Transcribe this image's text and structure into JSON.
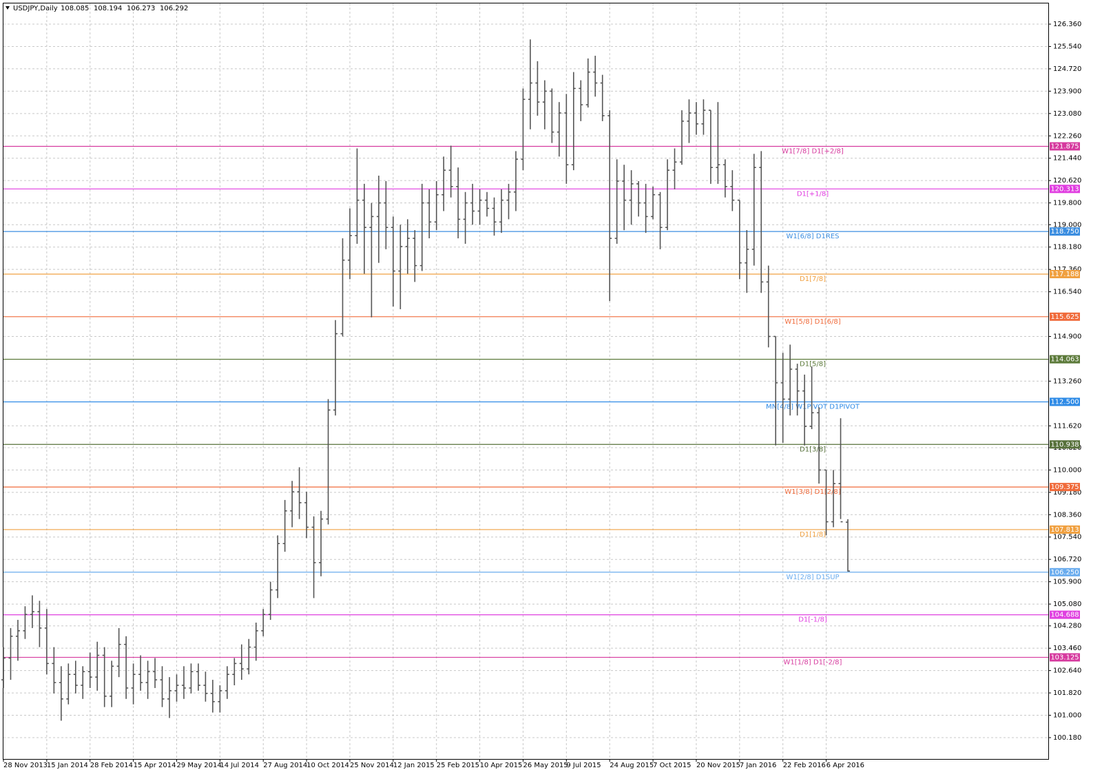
{
  "chart_data": {
    "type": "ohlc",
    "symbol": "USDJPY,Daily",
    "last_ohlc": [
      108.085,
      108.194,
      106.273,
      106.292
    ],
    "bar_color": "#555555",
    "grid": true,
    "ylim": [
      99.396,
      127.119
    ],
    "yticks": [
      {
        "value": 100.18,
        "label": "100.180"
      },
      {
        "value": 101.0,
        "label": "101.000"
      },
      {
        "value": 101.82,
        "label": "101.820"
      },
      {
        "value": 102.64,
        "label": "102.640"
      },
      {
        "value": 103.46,
        "label": "103.460"
      },
      {
        "value": 104.28,
        "label": "104.280"
      },
      {
        "value": 105.08,
        "label": "105.080"
      },
      {
        "value": 105.9,
        "label": "105.900"
      },
      {
        "value": 106.72,
        "label": "106.720"
      },
      {
        "value": 107.54,
        "label": "107.540"
      },
      {
        "value": 108.36,
        "label": "108.360"
      },
      {
        "value": 109.18,
        "label": "109.180"
      },
      {
        "value": 110.0,
        "label": "110.000"
      },
      {
        "value": 110.82,
        "label": "110.820"
      },
      {
        "value": 111.62,
        "label": "111.620"
      },
      {
        "value": 113.26,
        "label": "113.260"
      },
      {
        "value": 114.9,
        "label": "114.900"
      },
      {
        "value": 116.54,
        "label": "116.540"
      },
      {
        "value": 117.36,
        "label": "117.360"
      },
      {
        "value": 118.18,
        "label": "118.180"
      },
      {
        "value": 119.0,
        "label": "119.000"
      },
      {
        "value": 119.8,
        "label": "119.800"
      },
      {
        "value": 120.62,
        "label": "120.620"
      },
      {
        "value": 121.44,
        "label": "121.440"
      },
      {
        "value": 122.26,
        "label": "122.260"
      },
      {
        "value": 123.08,
        "label": "123.080"
      },
      {
        "value": 123.9,
        "label": "123.900"
      },
      {
        "value": 124.72,
        "label": "124.720"
      },
      {
        "value": 125.54,
        "label": "125.540"
      },
      {
        "value": 126.36,
        "label": "126.360"
      }
    ],
    "categories": [
      "28 Nov 2013",
      null,
      null,
      null,
      null,
      null,
      "15 Jan 2014",
      null,
      null,
      null,
      null,
      null,
      "28 Feb 2014",
      null,
      null,
      null,
      null,
      null,
      "15 Apr 2014",
      null,
      null,
      null,
      null,
      null,
      "29 May 2014",
      null,
      null,
      null,
      null,
      null,
      "14 Jul 2014",
      null,
      null,
      null,
      null,
      null,
      "27 Aug 2014",
      null,
      null,
      null,
      null,
      null,
      "10 Oct 2014",
      null,
      null,
      null,
      null,
      null,
      "25 Nov 2014",
      null,
      null,
      null,
      null,
      null,
      "12 Jan 2015",
      null,
      null,
      null,
      null,
      null,
      "25 Feb 2015",
      null,
      null,
      null,
      null,
      null,
      "10 Apr 2015",
      null,
      null,
      null,
      null,
      null,
      "26 May 2015",
      null,
      null,
      null,
      null,
      null,
      "9 Jul 2015",
      null,
      null,
      null,
      null,
      null,
      "24 Aug 2015",
      null,
      null,
      null,
      null,
      null,
      "7 Oct 2015",
      null,
      null,
      null,
      null,
      null,
      "20 Nov 2015",
      null,
      null,
      null,
      null,
      null,
      "7 Jan 2016",
      null,
      null,
      null,
      null,
      null,
      "22 Feb 2016",
      null,
      null,
      null,
      null,
      null,
      "6 Apr 2016",
      null,
      null,
      null
    ],
    "ohlc": [
      [
        102.3,
        103.5,
        102.0,
        103.1
      ],
      [
        103.1,
        104.2,
        102.3,
        103.9
      ],
      [
        103.9,
        104.5,
        103.0,
        104.1
      ],
      [
        104.1,
        105.0,
        103.8,
        104.7
      ],
      [
        104.7,
        105.4,
        104.2,
        104.8
      ],
      [
        104.8,
        105.2,
        103.5,
        104.2
      ],
      [
        104.2,
        104.9,
        102.5,
        102.9
      ],
      [
        102.9,
        103.5,
        101.8,
        102.2
      ],
      [
        102.2,
        102.8,
        100.8,
        101.6
      ],
      [
        101.6,
        102.9,
        101.4,
        102.5
      ],
      [
        102.5,
        103.0,
        101.8,
        102.1
      ],
      [
        102.1,
        102.8,
        101.6,
        102.6
      ],
      [
        102.6,
        103.3,
        102.0,
        102.4
      ],
      [
        102.4,
        103.7,
        101.9,
        103.2
      ],
      [
        103.2,
        103.5,
        101.3,
        101.7
      ],
      [
        101.7,
        103.0,
        101.3,
        102.8
      ],
      [
        102.8,
        104.2,
        102.4,
        103.6
      ],
      [
        103.6,
        103.9,
        101.6,
        102.0
      ],
      [
        102.0,
        102.9,
        101.4,
        102.5
      ],
      [
        102.5,
        103.2,
        101.9,
        102.2
      ],
      [
        102.2,
        103.0,
        101.6,
        102.6
      ],
      [
        102.6,
        103.1,
        102.0,
        102.3
      ],
      [
        102.3,
        102.8,
        101.3,
        101.6
      ],
      [
        101.6,
        102.4,
        100.9,
        101.9
      ],
      [
        101.9,
        102.5,
        101.5,
        102.1
      ],
      [
        102.1,
        102.8,
        101.6,
        102.0
      ],
      [
        102.0,
        102.9,
        101.8,
        102.6
      ],
      [
        102.6,
        102.9,
        101.9,
        102.1
      ],
      [
        102.1,
        102.6,
        101.5,
        101.8
      ],
      [
        101.8,
        102.3,
        101.1,
        101.5
      ],
      [
        101.5,
        102.1,
        101.1,
        101.9
      ],
      [
        101.9,
        102.8,
        101.6,
        102.5
      ],
      [
        102.5,
        103.1,
        102.1,
        102.9
      ],
      [
        102.9,
        103.6,
        102.3,
        102.7
      ],
      [
        102.7,
        103.8,
        102.5,
        103.5
      ],
      [
        103.5,
        104.4,
        103.0,
        104.1
      ],
      [
        104.1,
        104.9,
        103.9,
        104.7
      ],
      [
        104.7,
        105.9,
        104.5,
        105.6
      ],
      [
        105.6,
        107.6,
        105.3,
        107.3
      ],
      [
        107.3,
        108.9,
        107.0,
        108.5
      ],
      [
        108.5,
        109.6,
        107.9,
        109.2
      ],
      [
        109.2,
        110.1,
        108.2,
        108.8
      ],
      [
        108.8,
        109.2,
        107.5,
        107.9
      ],
      [
        107.9,
        108.3,
        105.3,
        106.6
      ],
      [
        106.6,
        108.5,
        106.1,
        108.2
      ],
      [
        108.2,
        112.6,
        108.0,
        112.2
      ],
      [
        112.2,
        115.5,
        112.0,
        115.0
      ],
      [
        115.0,
        118.5,
        114.9,
        117.7
      ],
      [
        117.7,
        119.6,
        117.0,
        118.6
      ],
      [
        118.6,
        121.8,
        118.3,
        119.9
      ],
      [
        119.9,
        120.5,
        117.2,
        118.9
      ],
      [
        118.9,
        119.8,
        115.6,
        119.3
      ],
      [
        119.3,
        120.8,
        117.6,
        119.8
      ],
      [
        119.8,
        120.6,
        118.1,
        118.9
      ],
      [
        118.9,
        119.3,
        116.0,
        117.3
      ],
      [
        117.3,
        119.0,
        115.9,
        118.2
      ],
      [
        118.2,
        119.2,
        117.2,
        118.5
      ],
      [
        118.5,
        118.8,
        116.9,
        117.5
      ],
      [
        117.5,
        120.5,
        117.3,
        119.8
      ],
      [
        119.8,
        120.3,
        118.5,
        119.1
      ],
      [
        119.1,
        120.6,
        118.8,
        120.1
      ],
      [
        120.1,
        121.5,
        119.5,
        121.0
      ],
      [
        121.0,
        121.9,
        120.0,
        120.4
      ],
      [
        120.4,
        121.1,
        118.5,
        119.2
      ],
      [
        119.2,
        120.2,
        118.3,
        119.8
      ],
      [
        119.8,
        120.5,
        119.0,
        119.5
      ],
      [
        119.5,
        120.3,
        119.0,
        119.9
      ],
      [
        119.9,
        120.2,
        119.3,
        119.6
      ],
      [
        119.6,
        120.0,
        118.6,
        119.1
      ],
      [
        119.1,
        120.3,
        118.7,
        119.9
      ],
      [
        119.9,
        120.5,
        119.2,
        120.2
      ],
      [
        120.2,
        121.7,
        119.5,
        121.4
      ],
      [
        121.4,
        124.0,
        121.0,
        123.6
      ],
      [
        123.6,
        125.8,
        122.5,
        124.2
      ],
      [
        124.2,
        125.0,
        123.0,
        123.5
      ],
      [
        123.5,
        124.3,
        122.5,
        123.9
      ],
      [
        123.9,
        124.0,
        122.0,
        122.4
      ],
      [
        122.4,
        123.5,
        121.5,
        123.1
      ],
      [
        123.1,
        123.8,
        120.5,
        121.2
      ],
      [
        121.2,
        124.6,
        121.0,
        124.0
      ],
      [
        124.0,
        124.3,
        122.8,
        123.4
      ],
      [
        123.4,
        125.1,
        123.3,
        124.6
      ],
      [
        124.6,
        125.2,
        123.7,
        124.2
      ],
      [
        124.2,
        124.5,
        122.8,
        123.0
      ],
      [
        123.0,
        123.2,
        116.2,
        118.5
      ],
      [
        118.5,
        121.4,
        118.3,
        120.6
      ],
      [
        120.6,
        121.2,
        118.8,
        119.9
      ],
      [
        119.9,
        121.0,
        119.0,
        120.5
      ],
      [
        120.5,
        120.6,
        119.3,
        119.8
      ],
      [
        119.8,
        120.5,
        118.7,
        119.3
      ],
      [
        119.3,
        120.4,
        119.2,
        120.1
      ],
      [
        120.1,
        120.2,
        118.1,
        118.9
      ],
      [
        118.9,
        121.4,
        118.8,
        121.0
      ],
      [
        121.0,
        121.8,
        120.3,
        121.3
      ],
      [
        121.3,
        123.2,
        121.2,
        122.8
      ],
      [
        122.8,
        123.6,
        122.0,
        123.1
      ],
      [
        123.1,
        123.5,
        122.3,
        122.7
      ],
      [
        122.7,
        123.6,
        122.3,
        123.2
      ],
      [
        123.2,
        123.2,
        120.5,
        121.1
      ],
      [
        121.1,
        123.5,
        120.5,
        121.2
      ],
      [
        121.2,
        121.4,
        120.0,
        120.4
      ],
      [
        120.4,
        121.0,
        119.5,
        119.9
      ],
      [
        119.9,
        119.9,
        117.0,
        117.6
      ],
      [
        117.6,
        118.8,
        116.5,
        118.1
      ],
      [
        118.1,
        121.6,
        117.5,
        121.1
      ],
      [
        121.1,
        121.7,
        116.5,
        116.9
      ],
      [
        116.9,
        117.5,
        114.5,
        114.9
      ],
      [
        114.9,
        114.9,
        110.9,
        113.2
      ],
      [
        113.2,
        114.3,
        111.0,
        112.6
      ],
      [
        112.6,
        114.6,
        112.0,
        113.7
      ],
      [
        113.7,
        113.9,
        112.0,
        112.9
      ],
      [
        112.9,
        113.5,
        110.9,
        111.6
      ],
      [
        111.6,
        113.8,
        111.5,
        112.1
      ],
      [
        112.1,
        112.3,
        109.5,
        110.0
      ],
      [
        110.0,
        110.0,
        107.6,
        108.1
      ],
      [
        108.1,
        110.0,
        107.9,
        109.5
      ],
      [
        109.5,
        111.9,
        108.2,
        108.1
      ],
      [
        108.085,
        108.194,
        106.273,
        106.292
      ]
    ],
    "levels": [
      {
        "value": 121.875,
        "label": "W1[7/8] D1[+2/8]",
        "color": "#d63a9e"
      },
      {
        "value": 120.313,
        "label": "D1[+1/8]",
        "color": "#e03ce0"
      },
      {
        "value": 118.75,
        "tag": "118.750",
        "label": "W1[6/8] D1RES",
        "color": "#3c8ee0"
      },
      {
        "value": 117.188,
        "label": "D1[7/8]",
        "color": "#f0a040"
      },
      {
        "value": 115.625,
        "label": "W1[5/8] D1[6/8]",
        "color": "#f06a3a"
      },
      {
        "value": 114.063,
        "label": "D1[5/8]",
        "color": "#5c7a3a"
      },
      {
        "value": 112.5,
        "tag": "112.500",
        "label": "MN[4/8] W1PIVOT D1PIVOT",
        "color": "#2d8ae6"
      },
      {
        "value": 110.938,
        "label": "D1[3/8]",
        "color": "#56703a"
      },
      {
        "value": 109.375,
        "label": "W1[3/8] D1[2/8]",
        "color": "#f06a3a"
      },
      {
        "value": 107.813,
        "label": "D1[1/8]",
        "color": "#f0a040"
      },
      {
        "value": 106.25,
        "tag": "106.250",
        "label": "W1[2/8] D1SUP",
        "color": "#6aacee"
      },
      {
        "value": 104.688,
        "label": "D1[-1/8]",
        "color": "#e040e0"
      },
      {
        "value": 103.125,
        "label": "W1[1/8] D1[-2/8]",
        "color": "#d63a9e"
      }
    ]
  }
}
